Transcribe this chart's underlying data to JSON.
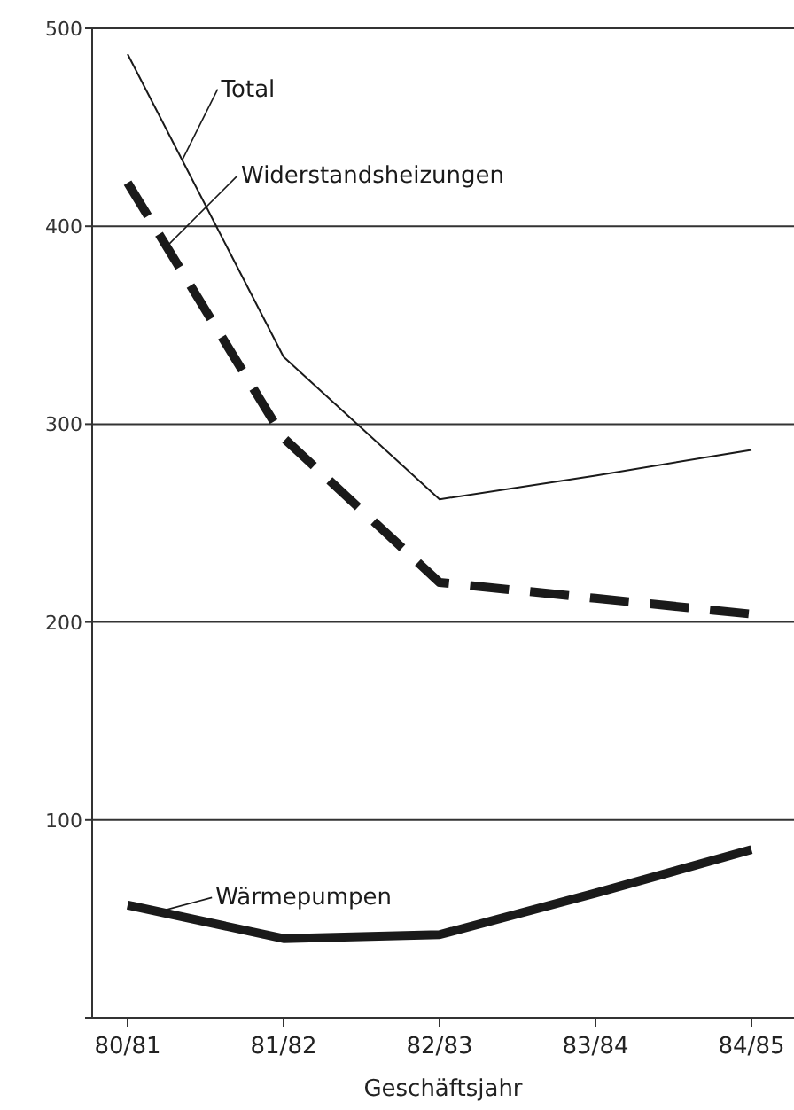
{
  "chart_data": {
    "type": "line",
    "xlabel": "Geschäftsjahr",
    "categories": [
      "80/81",
      "81/82",
      "82/83",
      "83/84",
      "84/85"
    ],
    "series": [
      {
        "name": "Total",
        "color": "#1a1a1a",
        "line_style": "solid",
        "values": [
          487,
          334,
          262,
          274,
          287
        ]
      },
      {
        "name": "Widerstandsheizungen",
        "color": "#1a1a1a",
        "line_style": "dashed",
        "values": [
          422,
          293,
          220,
          212,
          204
        ]
      },
      {
        "name": "Wärmepumpen",
        "color": "#1a1a1a",
        "line_style": "solid",
        "values": [
          57,
          40,
          42,
          63,
          85
        ]
      }
    ],
    "ylim": [
      0,
      500
    ],
    "yticks": [
      {
        "value": 0,
        "label": null
      },
      100,
      200,
      300,
      400,
      500
    ],
    "grid": "y",
    "marker": "none"
  }
}
